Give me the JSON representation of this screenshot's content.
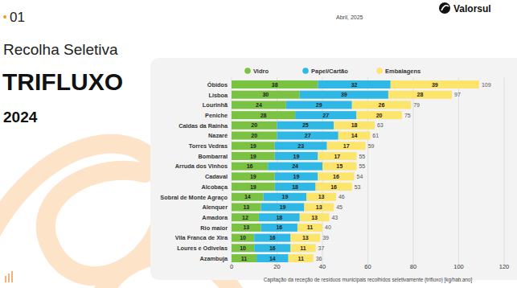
{
  "page": {
    "number": "01",
    "date": "Abril, 2025",
    "brand": "Valorsul",
    "heading": "Recolha Seletiva",
    "title": "TRIFLUXO",
    "year": "2024"
  },
  "chart_data": {
    "type": "bar",
    "orientation": "horizontal",
    "stacked": true,
    "data_labels": true,
    "grid": true,
    "legend": "top",
    "categories": [
      "Óbidos",
      "Lisboa",
      "Lourinhã",
      "Peniche",
      "Caldas da Rainha",
      "Nazaré",
      "Torres Vedras",
      "Bombarral",
      "Arruda dos Vinhos",
      "Cadaval",
      "Alcobaça",
      "Sobral de Monte Agraço",
      "Alenquer",
      "Amadora",
      "Rio maior",
      "Vila Franca de Xira",
      "Loures e Odivelas",
      "Azambuja"
    ],
    "series": [
      {
        "name": "Vidro",
        "color": "#7cc242",
        "values": [
          38,
          30,
          24,
          28,
          20,
          20,
          19,
          19,
          16,
          19,
          19,
          14,
          13,
          12,
          13,
          10,
          10,
          11
        ]
      },
      {
        "name": "Papel/Cartão",
        "color": "#2fb8e6",
        "values": [
          32,
          39,
          29,
          27,
          25,
          27,
          23,
          19,
          24,
          19,
          18,
          19,
          19,
          18,
          16,
          16,
          16,
          14
        ]
      },
      {
        "name": "Embalagens",
        "color": "#fde46a",
        "values": [
          39,
          28,
          26,
          20,
          18,
          14,
          17,
          17,
          15,
          16,
          16,
          13,
          13,
          13,
          11,
          13,
          11,
          11
        ]
      }
    ],
    "totals": [
      109,
      97,
      79,
      75,
      63,
      61,
      59,
      55,
      55,
      54,
      53,
      46,
      45,
      43,
      40,
      39,
      37,
      36
    ],
    "xlim": [
      0,
      120
    ],
    "xticks": [
      0,
      20,
      40,
      60,
      80,
      100,
      120
    ],
    "xlabel": "Capitação da receção de resíduos municipais recolhidos seletivamente (trifluxo) [kg/hab.ano]"
  }
}
